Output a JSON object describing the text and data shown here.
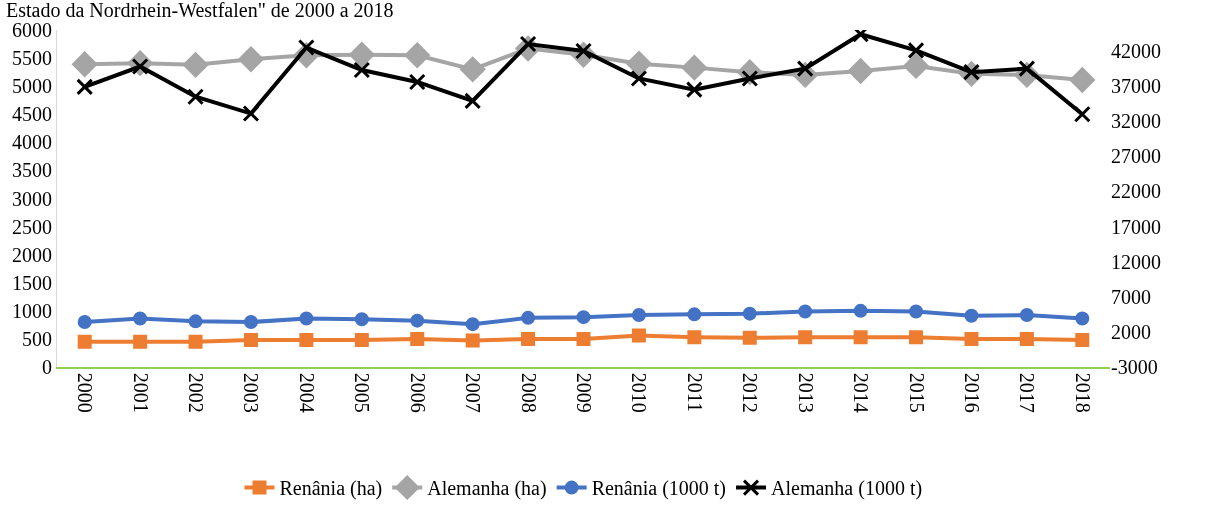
{
  "chart_data": {
    "type": "line",
    "title": "Estado da Nordrhein-Westfalen\" de 2000 a 2018",
    "categories": [
      "2000",
      "2001",
      "2002",
      "2003",
      "2004",
      "2005",
      "2006",
      "2007",
      "2008",
      "2009",
      "2010",
      "2011",
      "2012",
      "2013",
      "2014",
      "2015",
      "2016",
      "2017",
      "2018"
    ],
    "series": [
      {
        "name": "Renânia (ha)",
        "color": "#ed7d31",
        "marker": "square",
        "values": [
          450,
          450,
          450,
          480,
          480,
          480,
          500,
          470,
          500,
          500,
          560,
          530,
          520,
          530,
          530,
          530,
          500,
          500,
          480
        ]
      },
      {
        "name": "Alemanha (ha)",
        "color": "#a5a5a5",
        "marker": "diamond",
        "values": [
          5390,
          5410,
          5380,
          5480,
          5550,
          5560,
          5550,
          5300,
          5670,
          5560,
          5400,
          5330,
          5250,
          5200,
          5270,
          5360,
          5220,
          5200,
          5110
        ]
      },
      {
        "name": "Renânia (1000 t)",
        "color": "#4472c4",
        "marker": "circle",
        "axis": "y2",
        "values": [
          3400,
          3900,
          3500,
          3400,
          3900,
          3800,
          3600,
          3100,
          4000,
          4100,
          4400,
          4500,
          4600,
          4900,
          5000,
          4900,
          4300,
          4400,
          3900
        ]
      },
      {
        "name": "Alemanha (1000 t)",
        "color": "#000000",
        "marker": "cross",
        "axis": "y2",
        "values": [
          36900,
          39800,
          35500,
          33100,
          42500,
          39300,
          37600,
          34900,
          43000,
          42000,
          38100,
          36500,
          38100,
          39500,
          44400,
          42100,
          39000,
          39500,
          33000
        ]
      }
    ],
    "ylim": [
      0,
      6000
    ],
    "yticks": [
      0,
      500,
      1000,
      1500,
      2000,
      2500,
      3000,
      3500,
      4000,
      4500,
      5000,
      5500,
      6000
    ],
    "y2lim": [
      -3000,
      45000
    ],
    "y2ticks": [
      -3000,
      2000,
      7000,
      12000,
      17000,
      22000,
      27000,
      32000,
      37000,
      42000
    ],
    "grid": false,
    "legend": "bottom"
  }
}
